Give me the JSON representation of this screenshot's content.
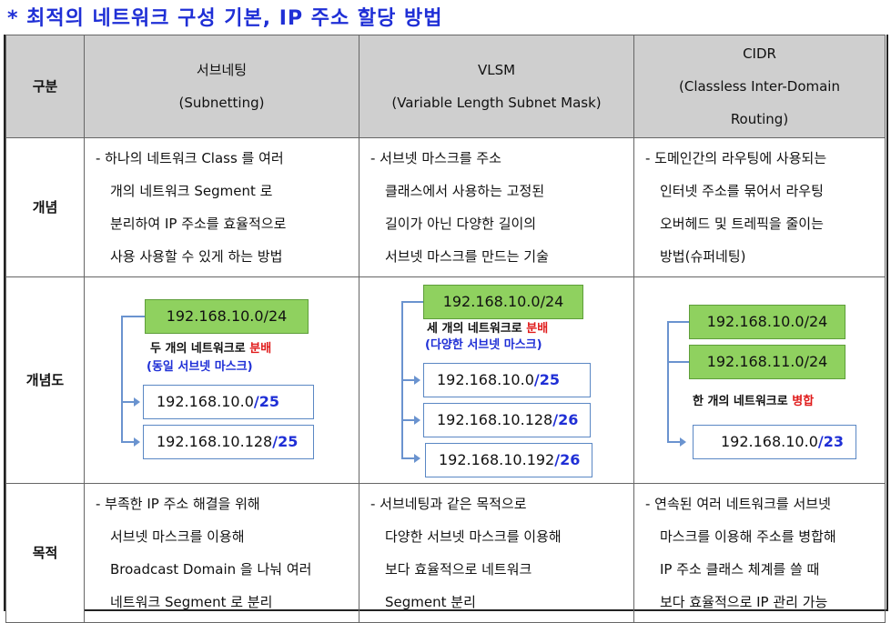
{
  "title": "* 최적의 네트워크 구성 기본, IP 주소 할당 방법",
  "header": {
    "col0": "구분",
    "col1": [
      "서브네팅",
      "(Subnetting)"
    ],
    "col2": [
      "VLSM",
      "(Variable Length Subnet Mask)"
    ],
    "col3": [
      "CIDR",
      "(Classless Inter-Domain",
      "Routing)"
    ]
  },
  "rows": {
    "concept": {
      "label": "개념",
      "c1": [
        "- 하나의 네트워크 Class 를 여러",
        "개의 네트워크 Segment 로",
        "분리하여 IP 주소를 효율적으로",
        "사용 사용할 수 있게 하는 방법"
      ],
      "c2": [
        "- 서브넷 마스크를 주소",
        "클래스에서 사용하는 고정된",
        "길이가 아닌 다양한 길이의",
        "서브넷 마스크를 만드는 기술"
      ],
      "c3": [
        "- 도메인간의 라우팅에 사용되는",
        "인터넷 주소를 묶어서 라우팅",
        "오버헤드 및 트레픽을 줄이는",
        "방법(슈퍼네팅)"
      ]
    },
    "diagram": {
      "label": "개념도",
      "c1": {
        "source": "192.168.10.0/24",
        "note1": "두 개의 네트워크로 ",
        "note1_red": "분배",
        "note2": "(동일 서브넷 마스크)",
        "out1_base": "192.168.10.0",
        "out1_suffix": "/25",
        "out2_base": "192.168.10.128",
        "out2_suffix": "/25"
      },
      "c2": {
        "source": "192.168.10.0/24",
        "note1": "세 개의 네트워크로 ",
        "note1_red": "분배",
        "note2": "(다양한 서브넷 마스크)",
        "out1_base": "192.168.10.0",
        "out1_suffix": "/25",
        "out2_base": "192.168.10.128",
        "out2_suffix": "/26",
        "out3_base": "192.168.10.192",
        "out3_suffix": "/26"
      },
      "c3": {
        "src1": "192.168.10.0/24",
        "src2": "192.168.11.0/24",
        "note1": "한 개의 네트워크로 ",
        "note1_red": "병합",
        "out_base": "192.168.10.0",
        "out_suffix": "/23"
      }
    },
    "purpose": {
      "label": "목적",
      "c1": [
        "- 부족한 IP 주소 해결을 위해",
        "서브넷 마스크를 이용해",
        "Broadcast Domain 을 나눠 여러",
        "네트워크 Segment 로 분리"
      ],
      "c2": [
        "- 서브네팅과 같은 목적으로",
        "다양한 서브넷 마스크를 이용해",
        "보다 효율적으로 네트워크",
        "Segment 분리"
      ],
      "c3": [
        "- 연속된 여러 네트워크를 서브넷",
        "마스크를 이용해 주소를 병합해",
        "IP 주소 클래스 체계를 쓸 때",
        "보다 효율적으로 IP 관리 가능"
      ]
    }
  },
  "colors": {
    "title": "#1f2fd6",
    "green_box": "#8fd15f",
    "header_bg": "#cfcfcf",
    "red": "#e01b1b"
  }
}
